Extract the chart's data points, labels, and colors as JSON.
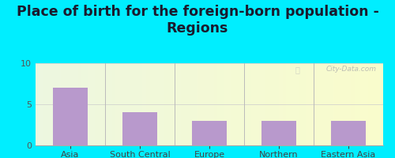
{
  "title": "Place of birth for the foreign-born population -\nRegions",
  "categories": [
    "Asia",
    "South Central\nAsia",
    "Europe",
    "Northern\nEurope",
    "Eastern Asia"
  ],
  "values": [
    7,
    4,
    3,
    3,
    3
  ],
  "bar_color": "#b899cc",
  "background_color": "#00eeff",
  "ylim": [
    0,
    10
  ],
  "yticks": [
    0,
    5,
    10
  ],
  "title_fontsize": 12.5,
  "tick_fontsize": 8,
  "watermark": "City-Data.com"
}
